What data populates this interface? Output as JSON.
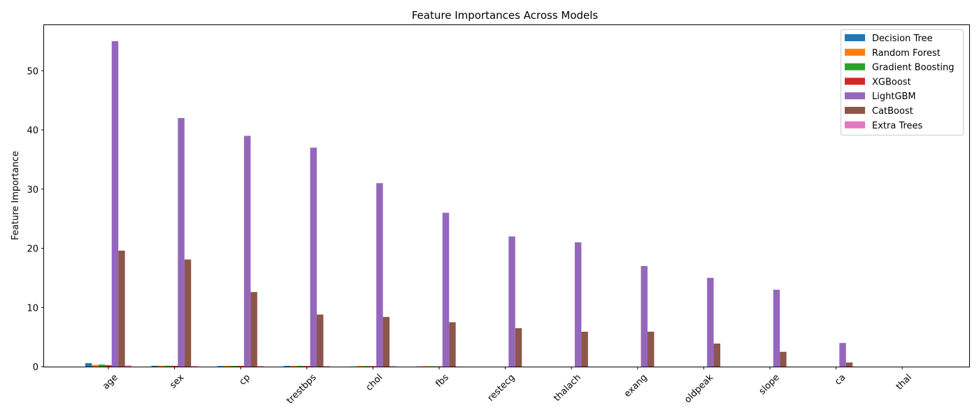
{
  "chart_data": {
    "type": "bar",
    "title": "Feature Importances Across Models",
    "xlabel": "",
    "ylabel": "Feature Importance",
    "ylim": [
      0,
      57.7
    ],
    "yticks": [
      0,
      10,
      20,
      30,
      40,
      50
    ],
    "grid": false,
    "legend_position": "top-right",
    "categories": [
      "age",
      "sex",
      "cp",
      "trestbps",
      "chol",
      "fbs",
      "restecg",
      "thalach",
      "exang",
      "oldpeak",
      "slope",
      "ca",
      "thal"
    ],
    "series": [
      {
        "name": "Decision Tree",
        "color": "#1f77b4",
        "values": [
          0.58,
          0.14,
          0.1,
          0.12,
          0.02,
          0.03,
          0,
          0,
          0,
          0,
          0,
          0,
          0
        ]
      },
      {
        "name": "Random Forest",
        "color": "#ff7f0e",
        "values": [
          0.28,
          0.15,
          0.13,
          0.12,
          0.1,
          0.08,
          0,
          0,
          0,
          0,
          0,
          0,
          0
        ]
      },
      {
        "name": "Gradient Boosting",
        "color": "#2ca02c",
        "values": [
          0.35,
          0.15,
          0.12,
          0.13,
          0.1,
          0.06,
          0,
          0,
          0,
          0,
          0,
          0,
          0
        ]
      },
      {
        "name": "XGBoost",
        "color": "#d62728",
        "values": [
          0.25,
          0.13,
          0.12,
          0.1,
          0.08,
          0.05,
          0,
          0,
          0,
          0,
          0,
          0,
          0
        ]
      },
      {
        "name": "LightGBM",
        "color": "#9467bd",
        "values": [
          55,
          42,
          39,
          37,
          31,
          26,
          22,
          21,
          17,
          15,
          13,
          4,
          0
        ]
      },
      {
        "name": "CatBoost",
        "color": "#8c564b",
        "values": [
          19.6,
          18.1,
          12.6,
          8.8,
          8.4,
          7.5,
          6.5,
          5.9,
          5.9,
          3.9,
          2.5,
          0.7,
          0
        ]
      },
      {
        "name": "Extra Trees",
        "color": "#e377c2",
        "values": [
          0.2,
          0.1,
          0.09,
          0.08,
          0.07,
          0.02,
          0,
          0,
          0,
          0,
          0,
          0,
          0
        ]
      }
    ]
  }
}
